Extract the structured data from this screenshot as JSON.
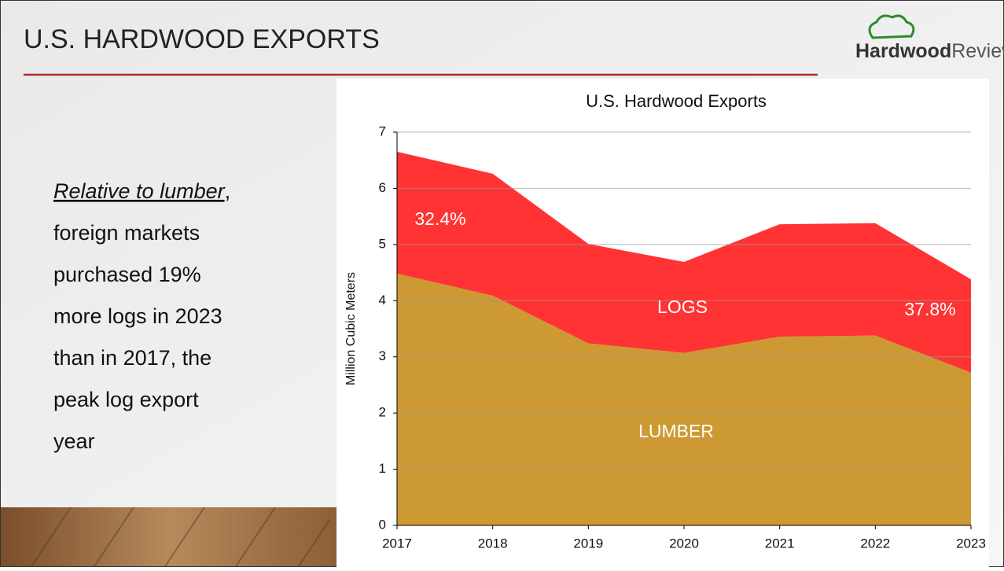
{
  "slide_title": "U.S. HARDWOOD EXPORTS",
  "logo": {
    "bold": "Hardwood",
    "light": "Review"
  },
  "body": {
    "lead": "Relative to lumber",
    "lead_punct": ",",
    "lines": [
      "foreign markets",
      "purchased 19%",
      "more logs in 2023",
      "than in 2017, the",
      "peak log export",
      "year"
    ]
  },
  "chart_data": {
    "type": "stacked_area",
    "title": "U.S. Hardwood Exports",
    "y_label": "Million Cubic Meters",
    "x": [
      2017,
      2018,
      2019,
      2020,
      2021,
      2022,
      2023
    ],
    "series": [
      {
        "name": "LUMBER",
        "color": "#cc9933",
        "values": [
          4.48,
          4.09,
          3.24,
          3.07,
          3.36,
          3.38,
          2.72
        ]
      },
      {
        "name": "LOGS",
        "color": "#ff3333",
        "values": [
          2.17,
          2.17,
          1.77,
          1.62,
          2.0,
          2.0,
          1.66
        ]
      }
    ],
    "annotations": [
      "32.4%",
      "37.8%"
    ],
    "xlim": [
      2017,
      2023
    ],
    "xticks": [
      2017,
      2018,
      2019,
      2020,
      2021,
      2022,
      2023
    ],
    "ylim": [
      0,
      7
    ],
    "yticks": [
      0,
      1,
      2,
      3,
      4,
      5,
      6,
      7
    ],
    "grid": true
  }
}
